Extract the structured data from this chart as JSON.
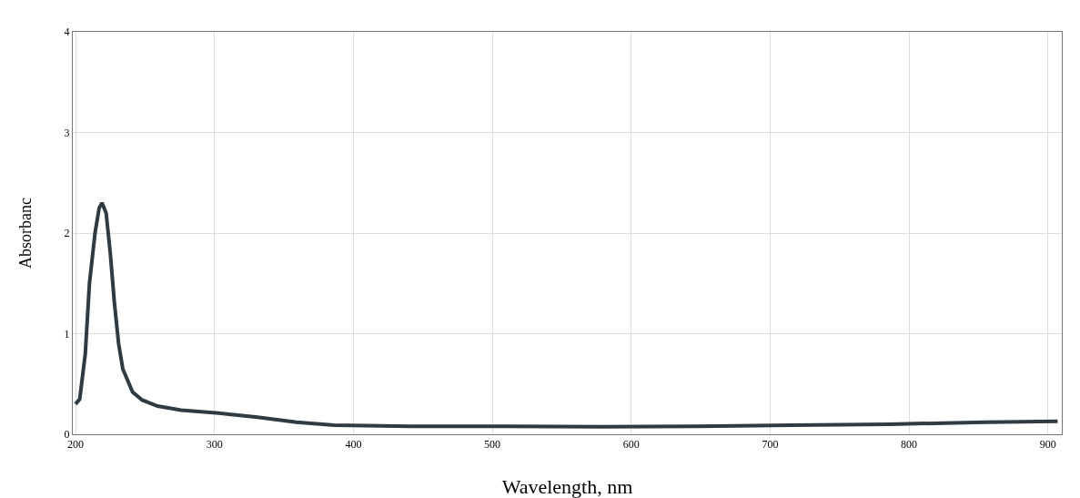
{
  "chart_data": {
    "type": "line",
    "xlabel": "Wavelength, nm",
    "ylabel": "Absorbanc",
    "x": [
      200,
      203,
      207,
      210,
      214,
      217,
      219,
      222,
      225,
      228,
      231,
      234,
      241,
      248,
      259,
      276,
      303,
      331,
      359,
      386,
      441,
      510,
      579,
      648,
      717,
      786,
      855,
      907
    ],
    "series": [
      {
        "color": "#2f3a44",
        "values": [
          0.3,
          0.35,
          0.8,
          1.5,
          2.0,
          2.25,
          2.3,
          2.2,
          1.8,
          1.3,
          0.9,
          0.65,
          0.42,
          0.34,
          0.28,
          0.24,
          0.21,
          0.17,
          0.12,
          0.09,
          0.08,
          0.08,
          0.075,
          0.08,
          0.09,
          0.1,
          0.12,
          0.13
        ]
      }
    ],
    "xlim": [
      198,
      910
    ],
    "xticks": [
      200,
      300,
      400,
      500,
      600,
      700,
      800,
      900
    ],
    "ylim": [
      0,
      4
    ],
    "yticks": [
      0,
      1,
      2,
      3,
      4
    ],
    "grid": true,
    "legend": false,
    "marker": "none",
    "line_style": "solid"
  }
}
